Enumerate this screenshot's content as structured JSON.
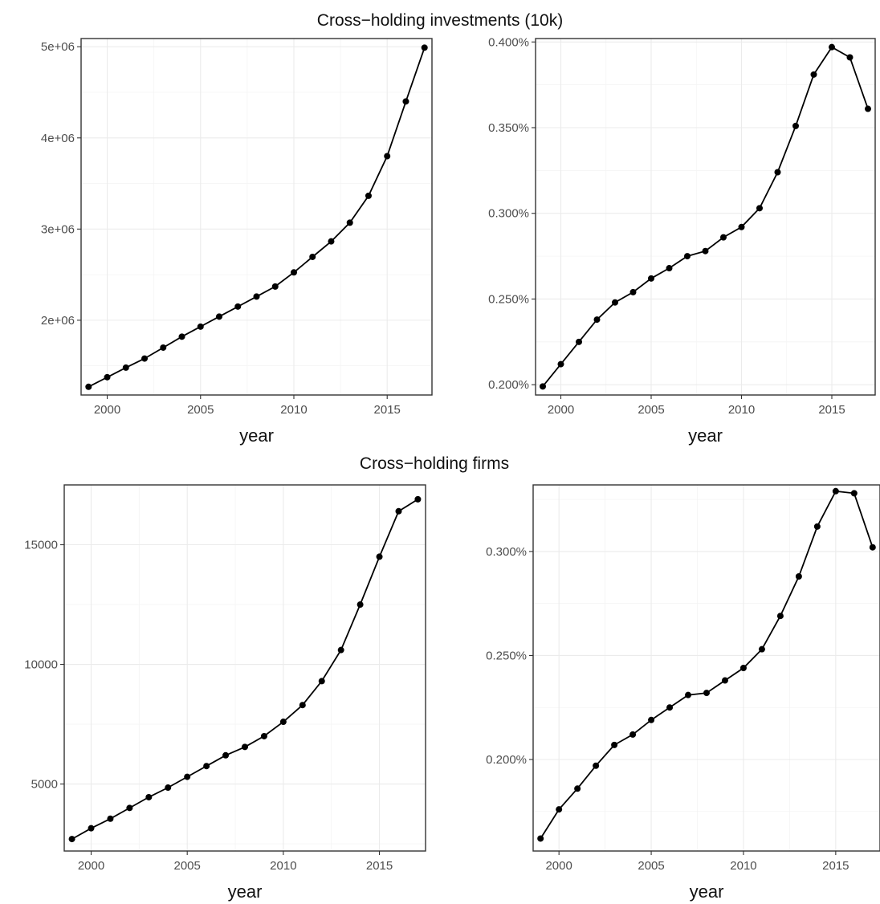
{
  "sections": [
    {
      "title": "Cross−holding investments (10k)"
    },
    {
      "title": "Cross−holding firms"
    }
  ],
  "chart_data": [
    {
      "type": "line",
      "xlabel": "year",
      "ylabel": "",
      "xlim": [
        1998.6,
        2017.4
      ],
      "ylim": [
        1180000,
        5090000
      ],
      "x_ticks": [
        2000,
        2005,
        2010,
        2015
      ],
      "x_tick_labels": [
        "2000",
        "2005",
        "2010",
        "2015"
      ],
      "y_ticks": [
        2000000,
        3000000,
        4000000,
        5000000
      ],
      "y_tick_labels": [
        "2e+06",
        "3e+06",
        "4e+06",
        "5e+06"
      ],
      "grid": true,
      "x": [
        1999,
        2000,
        2001,
        2002,
        2003,
        2004,
        2005,
        2006,
        2007,
        2008,
        2009,
        2010,
        2011,
        2012,
        2013,
        2014,
        2015,
        2016,
        2017
      ],
      "y": [
        1270000,
        1375000,
        1480000,
        1580000,
        1700000,
        1820000,
        1930000,
        2040000,
        2150000,
        2260000,
        2370000,
        2525000,
        2695000,
        2865000,
        3070000,
        3365000,
        3800000,
        4400000,
        4990000
      ]
    },
    {
      "type": "line",
      "xlabel": "year",
      "ylabel": "",
      "xlim": [
        1998.6,
        2017.4
      ],
      "ylim": [
        0.194,
        0.402
      ],
      "x_ticks": [
        2000,
        2005,
        2010,
        2015
      ],
      "x_tick_labels": [
        "2000",
        "2005",
        "2010",
        "2015"
      ],
      "y_ticks": [
        0.2,
        0.25,
        0.3,
        0.35,
        0.4
      ],
      "y_tick_labels": [
        "0.200%",
        "0.250%",
        "0.300%",
        "0.350%",
        "0.400%"
      ],
      "grid": true,
      "x": [
        1999,
        2000,
        2001,
        2002,
        2003,
        2004,
        2005,
        2006,
        2007,
        2008,
        2009,
        2010,
        2011,
        2012,
        2013,
        2014,
        2015,
        2016,
        2017
      ],
      "y": [
        0.199,
        0.212,
        0.225,
        0.238,
        0.248,
        0.254,
        0.262,
        0.268,
        0.275,
        0.278,
        0.286,
        0.292,
        0.303,
        0.324,
        0.351,
        0.381,
        0.397,
        0.391,
        0.361
      ]
    },
    {
      "type": "line",
      "xlabel": "year",
      "ylabel": "",
      "xlim": [
        1998.6,
        2017.4
      ],
      "ylim": [
        2200,
        17500
      ],
      "x_ticks": [
        2000,
        2005,
        2010,
        2015
      ],
      "x_tick_labels": [
        "2000",
        "2005",
        "2010",
        "2015"
      ],
      "y_ticks": [
        5000,
        10000,
        15000
      ],
      "y_tick_labels": [
        "5000",
        "10000",
        "15000"
      ],
      "grid": true,
      "x": [
        1999,
        2000,
        2001,
        2002,
        2003,
        2004,
        2005,
        2006,
        2007,
        2008,
        2009,
        2010,
        2011,
        2012,
        2013,
        2014,
        2015,
        2016,
        2017
      ],
      "y": [
        2700,
        3150,
        3550,
        4000,
        4450,
        4850,
        5300,
        5750,
        6200,
        6550,
        7000,
        7600,
        8300,
        9300,
        10600,
        12500,
        14500,
        16400,
        16900
      ]
    },
    {
      "type": "line",
      "xlabel": "year",
      "ylabel": "",
      "xlim": [
        1998.6,
        2017.4
      ],
      "ylim": [
        0.156,
        0.332
      ],
      "x_ticks": [
        2000,
        2005,
        2010,
        2015
      ],
      "x_tick_labels": [
        "2000",
        "2005",
        "2010",
        "2015"
      ],
      "y_ticks": [
        0.2,
        0.25,
        0.3
      ],
      "y_tick_labels": [
        "0.200%",
        "0.250%",
        "0.300%"
      ],
      "grid": true,
      "x": [
        1999,
        2000,
        2001,
        2002,
        2003,
        2004,
        2005,
        2006,
        2007,
        2008,
        2009,
        2010,
        2011,
        2012,
        2013,
        2014,
        2015,
        2016,
        2017
      ],
      "y": [
        0.162,
        0.176,
        0.186,
        0.197,
        0.207,
        0.212,
        0.219,
        0.225,
        0.231,
        0.232,
        0.238,
        0.244,
        0.253,
        0.269,
        0.288,
        0.312,
        0.329,
        0.328,
        0.302
      ]
    }
  ]
}
